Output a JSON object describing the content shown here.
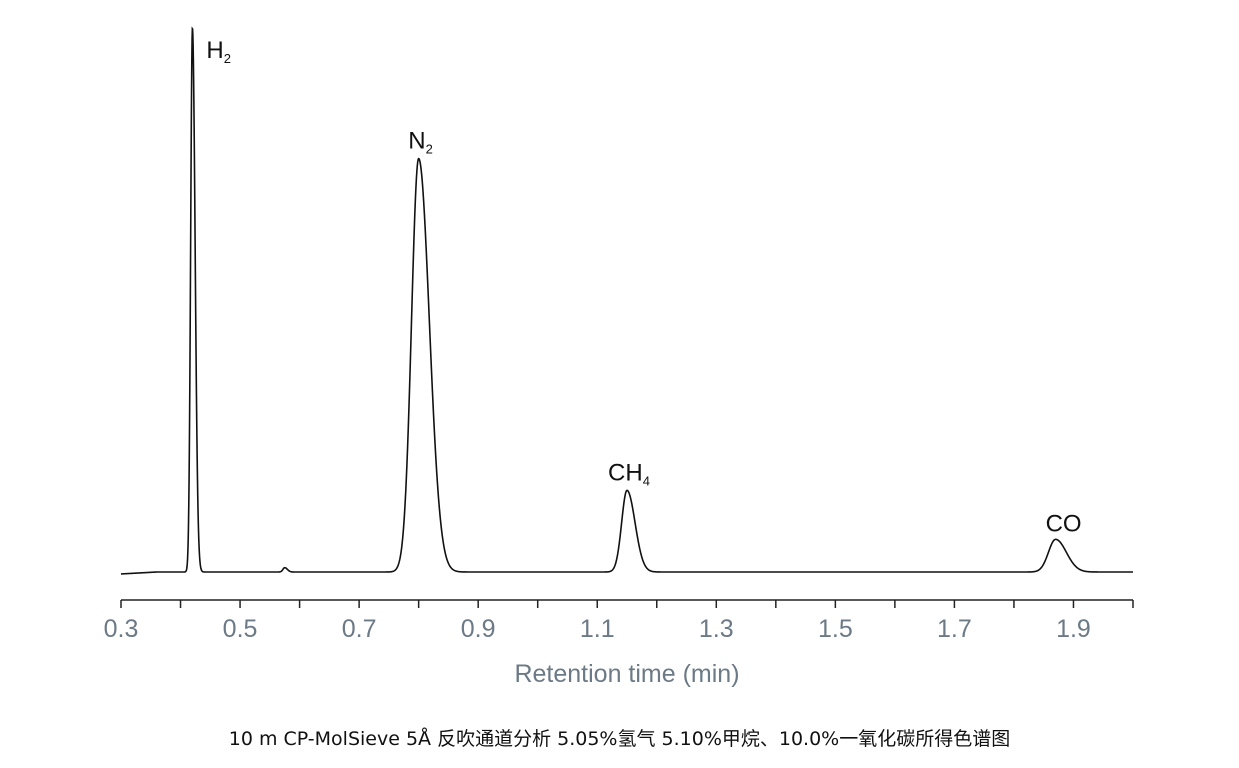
{
  "chart_data": {
    "type": "line",
    "xlabel": "Retention time (min)",
    "ylabel": "",
    "xlim": [
      0.3,
      2.0
    ],
    "xticks": [
      "0.3",
      "0.5",
      "0.7",
      "0.9",
      "1.1",
      "1.3",
      "1.5",
      "1.7",
      "1.9"
    ],
    "grid": false,
    "baseline": 0.0,
    "peaks": [
      {
        "name": "H",
        "sub": "2",
        "x": 0.42,
        "height": 1.0,
        "width": 0.003
      },
      {
        "name": "N",
        "sub": "2",
        "x": 0.8,
        "height": 0.76,
        "width": 0.012
      },
      {
        "name": "CH",
        "sub": "4",
        "x": 1.15,
        "height": 0.15,
        "width": 0.009
      },
      {
        "name": "CO",
        "sub": "",
        "x": 1.87,
        "height": 0.06,
        "width": 0.012
      }
    ],
    "minor_peaks": [
      {
        "x": 0.575,
        "height": 0.008,
        "width": 0.003
      }
    ]
  },
  "caption": "10 m CP-MolSieve 5Å 反吹通道分析 5.05%氢气 5.10%甲烷、10.0%一氧化碳所得色谱图"
}
